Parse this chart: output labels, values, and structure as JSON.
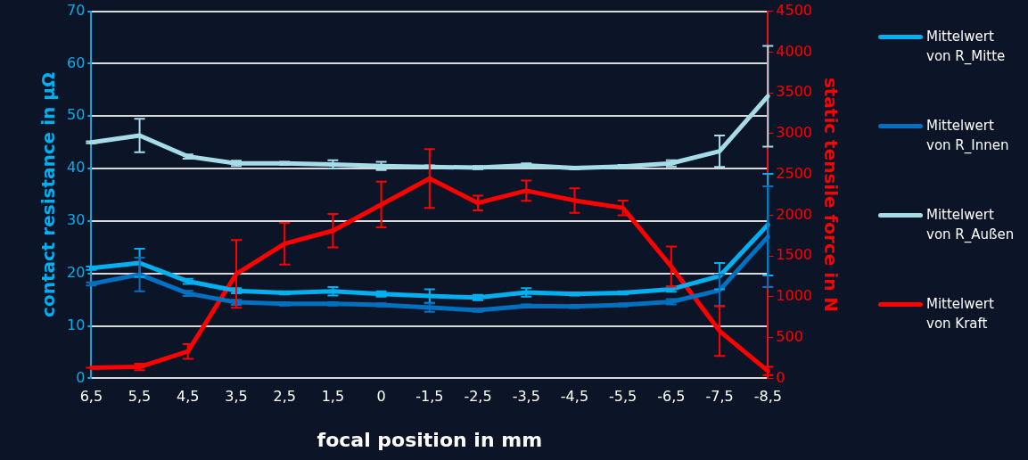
{
  "chart_data": {
    "type": "line",
    "xlabel": "focal position in mm",
    "ylabel": "contact resistance in µΩ",
    "y2label": "static tensile force in N",
    "categories": [
      "6,5",
      "5,5",
      "4,5",
      "3,5",
      "2,5",
      "1,5",
      "0",
      "-1,5",
      "-2,5",
      "-3,5",
      "-4,5",
      "-5,5",
      "-6,5",
      "-7,5",
      "-8,5"
    ],
    "ylim": [
      0,
      70
    ],
    "yticks": [
      0,
      10,
      20,
      30,
      40,
      50,
      60,
      70
    ],
    "y2lim": [
      0,
      4500
    ],
    "y2ticks": [
      0,
      500,
      1000,
      1500,
      2000,
      2500,
      3000,
      3500,
      4000,
      4500
    ],
    "grid": "y",
    "legend": "right",
    "marker": "none",
    "line_style": "solid",
    "series": [
      {
        "name": "Mittelwert von R_Mitte",
        "color": "#00b0f0",
        "values": [
          21,
          22,
          18.5,
          16.7,
          16.3,
          16.6,
          16.1,
          15.7,
          15.4,
          16.4,
          16.1,
          16.3,
          17,
          19.5,
          29.3
        ],
        "errors": [
          0.3,
          2.7,
          0.5,
          0.5,
          0.3,
          0.8,
          0.5,
          1.3,
          0.5,
          0.8,
          0.3,
          0.3,
          0.5,
          2.5,
          9.7
        ]
      },
      {
        "name": "Mittelwert von R_Innen",
        "color": "#0070c0",
        "values": [
          18,
          19.8,
          16.2,
          14.5,
          14.2,
          14.2,
          14,
          13.5,
          13,
          13.8,
          13.7,
          14,
          14.6,
          16.8,
          27
        ],
        "errors": [
          0.3,
          3.2,
          0.5,
          0.5,
          0.3,
          0.3,
          0.3,
          0.8,
          0.3,
          0.3,
          0.3,
          0.3,
          0.5,
          3,
          9.6
        ]
      },
      {
        "name": "Mittelwert von R_Außen",
        "color": "#a6dce8",
        "values": [
          45,
          46.3,
          42.3,
          41,
          41,
          40.8,
          40.5,
          40.3,
          40.2,
          40.6,
          40.1,
          40.4,
          41,
          43.3,
          53.8
        ],
        "errors": [
          0.2,
          3.2,
          0.4,
          0.5,
          0.3,
          0.8,
          0.8,
          0.3,
          0.3,
          0.4,
          0.2,
          0.3,
          0.6,
          3,
          9.6
        ]
      },
      {
        "name": "Mittelwert von Kraft",
        "color": "#ff0000",
        "axis": "y2",
        "values": [
          130,
          140,
          330,
          1280,
          1650,
          1810,
          2130,
          2450,
          2150,
          2300,
          2180,
          2090,
          1370,
          580,
          90
        ],
        "errors": [
          0,
          40,
          90,
          415,
          255,
          205,
          280,
          360,
          90,
          125,
          150,
          90,
          245,
          305,
          50
        ]
      }
    ]
  }
}
